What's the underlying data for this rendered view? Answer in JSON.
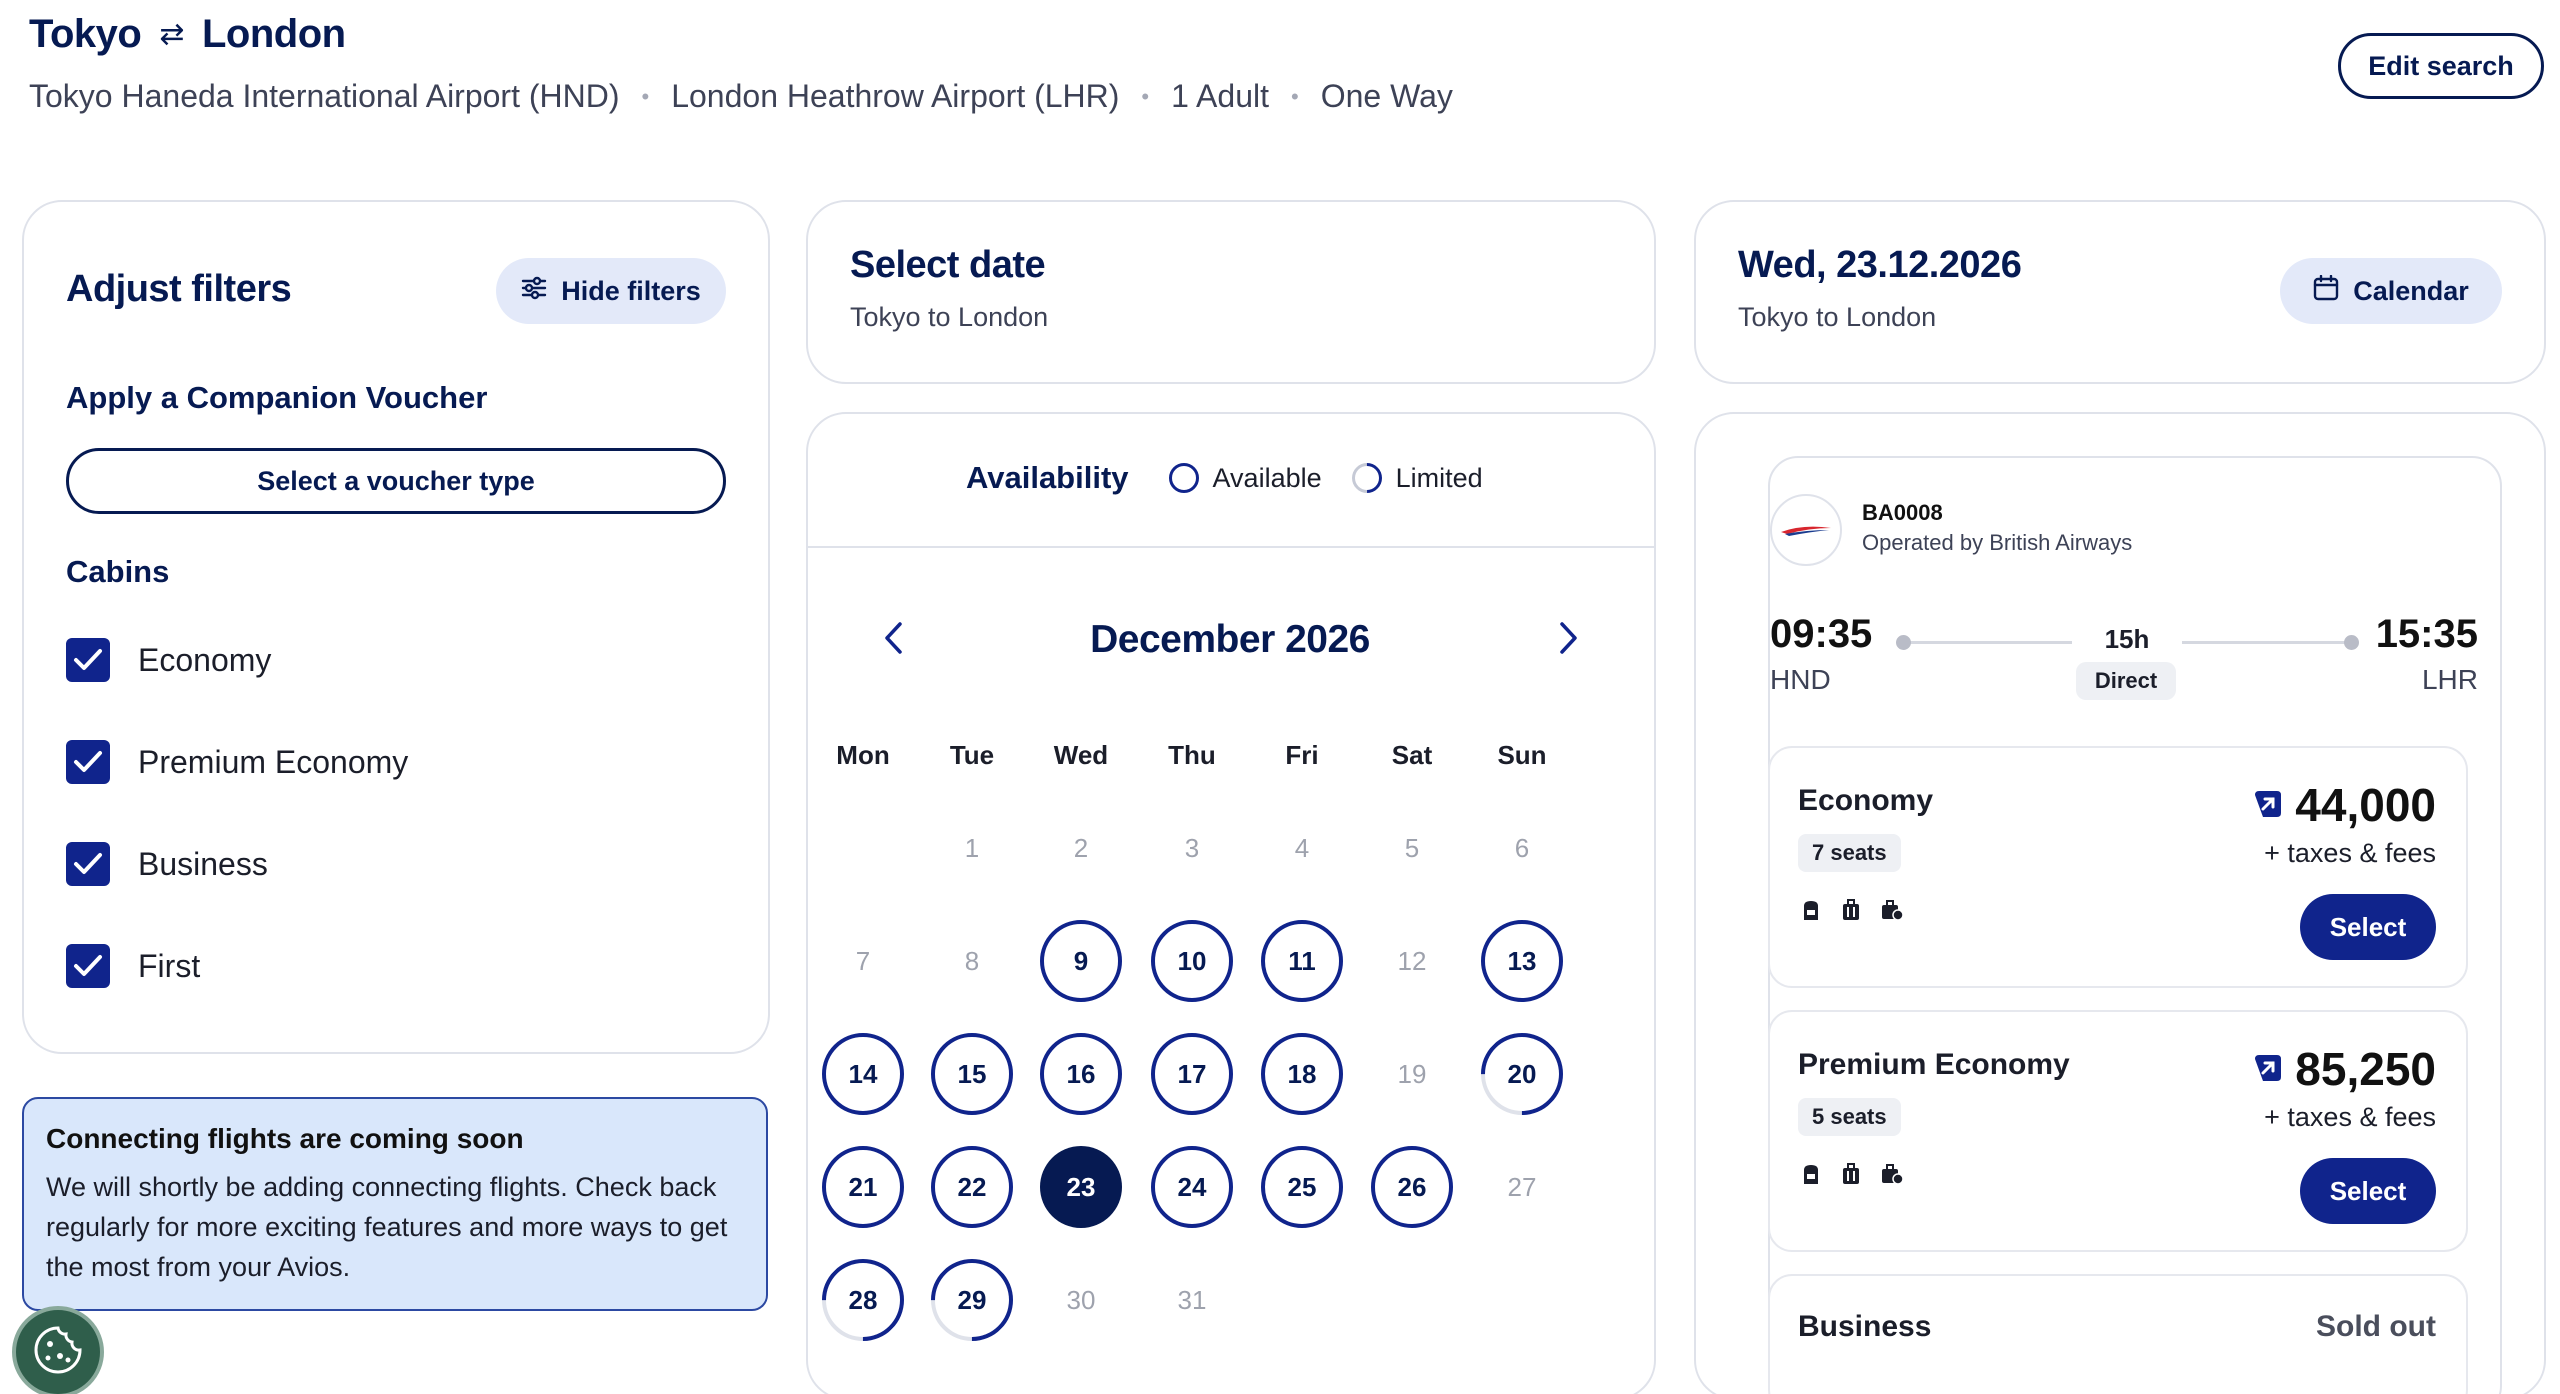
{
  "header": {
    "origin": "Tokyo",
    "destination": "London",
    "origin_airport": "Tokyo Haneda International Airport (HND)",
    "destination_airport": "London Heathrow Airport (LHR)",
    "passengers": "1 Adult",
    "trip_type": "One Way",
    "edit_label": "Edit search"
  },
  "filters": {
    "title": "Adjust filters",
    "hide_label": "Hide filters",
    "voucher_title": "Apply a Companion Voucher",
    "voucher_button": "Select a voucher type",
    "cabins_title": "Cabins",
    "cabins": [
      {
        "label": "Economy",
        "checked": true
      },
      {
        "label": "Premium Economy",
        "checked": true
      },
      {
        "label": "Business",
        "checked": true
      },
      {
        "label": "First",
        "checked": true
      }
    ]
  },
  "notice": {
    "title": "Connecting flights are coming soon",
    "body": "We will shortly be adding connecting flights. Check back regularly for more exciting features and more ways to get the most from your Avios."
  },
  "select_date": {
    "title": "Select date",
    "subtitle": "Tokyo to London"
  },
  "calendar": {
    "availability_label": "Availability",
    "legend_available": "Available",
    "legend_limited": "Limited",
    "month": "December 2026",
    "weekdays": [
      "Mon",
      "Tue",
      "Wed",
      "Thu",
      "Fri",
      "Sat",
      "Sun"
    ],
    "days": [
      {
        "d": "1",
        "s": "na"
      },
      {
        "d": "2",
        "s": "na"
      },
      {
        "d": "3",
        "s": "na"
      },
      {
        "d": "4",
        "s": "na"
      },
      {
        "d": "5",
        "s": "na"
      },
      {
        "d": "6",
        "s": "na"
      },
      {
        "d": "7",
        "s": "na"
      },
      {
        "d": "8",
        "s": "na"
      },
      {
        "d": "9",
        "s": "av"
      },
      {
        "d": "10",
        "s": "av"
      },
      {
        "d": "11",
        "s": "av"
      },
      {
        "d": "12",
        "s": "na"
      },
      {
        "d": "13",
        "s": "av"
      },
      {
        "d": "14",
        "s": "av"
      },
      {
        "d": "15",
        "s": "av"
      },
      {
        "d": "16",
        "s": "av"
      },
      {
        "d": "17",
        "s": "av"
      },
      {
        "d": "18",
        "s": "av"
      },
      {
        "d": "19",
        "s": "na"
      },
      {
        "d": "20",
        "s": "lim"
      },
      {
        "d": "21",
        "s": "av"
      },
      {
        "d": "22",
        "s": "av"
      },
      {
        "d": "23",
        "s": "sel"
      },
      {
        "d": "24",
        "s": "av"
      },
      {
        "d": "25",
        "s": "av"
      },
      {
        "d": "26",
        "s": "av"
      },
      {
        "d": "27",
        "s": "na"
      },
      {
        "d": "28",
        "s": "lim"
      },
      {
        "d": "29",
        "s": "lim"
      },
      {
        "d": "30",
        "s": "na"
      },
      {
        "d": "31",
        "s": "na"
      }
    ]
  },
  "selected_day": {
    "title": "Wed, 23.12.2026",
    "subtitle": "Tokyo to London",
    "calendar_label": "Calendar"
  },
  "flight": {
    "number": "BA0008",
    "operator": "Operated by British Airways",
    "depart_time": "09:35",
    "depart_code": "HND",
    "arrive_time": "15:35",
    "arrive_code": "LHR",
    "duration": "15h",
    "stops": "Direct",
    "cabins": [
      {
        "name": "Economy",
        "seats": "7 seats",
        "price": "44,000",
        "taxes": "+ taxes & fees",
        "button": "Select"
      },
      {
        "name": "Premium Economy",
        "seats": "5 seats",
        "price": "85,250",
        "taxes": "+ taxes & fees",
        "button": "Select"
      },
      {
        "name": "Business",
        "status": "Sold out"
      }
    ]
  },
  "colors": {
    "navy": "#061a52",
    "primary": "#10248c",
    "soft_button": "#e3e9f9",
    "notice_bg": "#d9e7fb"
  }
}
